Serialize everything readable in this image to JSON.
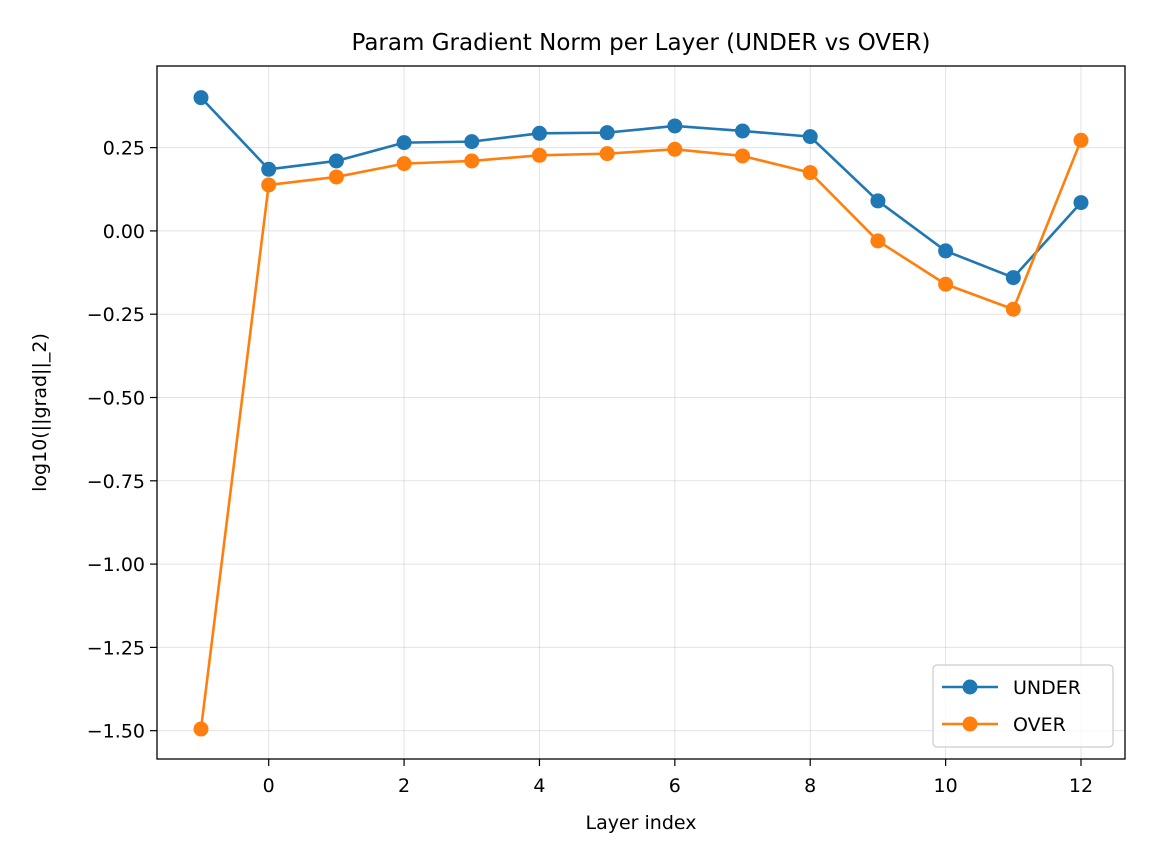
{
  "chart_data": {
    "type": "line",
    "title": "Param Gradient Norm per Layer (UNDER vs OVER)",
    "xlabel": "Layer index",
    "ylabel": "log10(||grad||_2)",
    "xlim": [
      -1.65,
      12.65
    ],
    "ylim": [
      -1.585,
      0.495
    ],
    "xticks": [
      0,
      2,
      4,
      6,
      8,
      10,
      12
    ],
    "xtick_labels": [
      "0",
      "2",
      "4",
      "6",
      "8",
      "10",
      "12"
    ],
    "yticks": [
      0.25,
      0.0,
      -0.25,
      -0.5,
      -0.75,
      -1.0,
      -1.25,
      -1.5
    ],
    "ytick_labels": [
      "0.25",
      "0.00",
      "−0.25",
      "−0.50",
      "−0.75",
      "−1.00",
      "−1.25",
      "−1.50"
    ],
    "grid": true,
    "legend_position": "lower-right",
    "x": [
      -1,
      0,
      1,
      2,
      3,
      4,
      5,
      6,
      7,
      8,
      9,
      10,
      11,
      12
    ],
    "series": [
      {
        "name": "UNDER",
        "color": "#1f77b4",
        "marker": "circle",
        "values": [
          0.4,
          0.185,
          0.21,
          0.265,
          0.268,
          0.293,
          0.295,
          0.315,
          0.3,
          0.283,
          0.09,
          -0.06,
          -0.14,
          0.085
        ]
      },
      {
        "name": "OVER",
        "color": "#ff7f0e",
        "marker": "circle",
        "values": [
          -1.495,
          0.138,
          0.162,
          0.202,
          0.21,
          0.227,
          0.232,
          0.245,
          0.225,
          0.175,
          -0.03,
          -0.16,
          -0.235,
          0.272
        ]
      }
    ]
  }
}
